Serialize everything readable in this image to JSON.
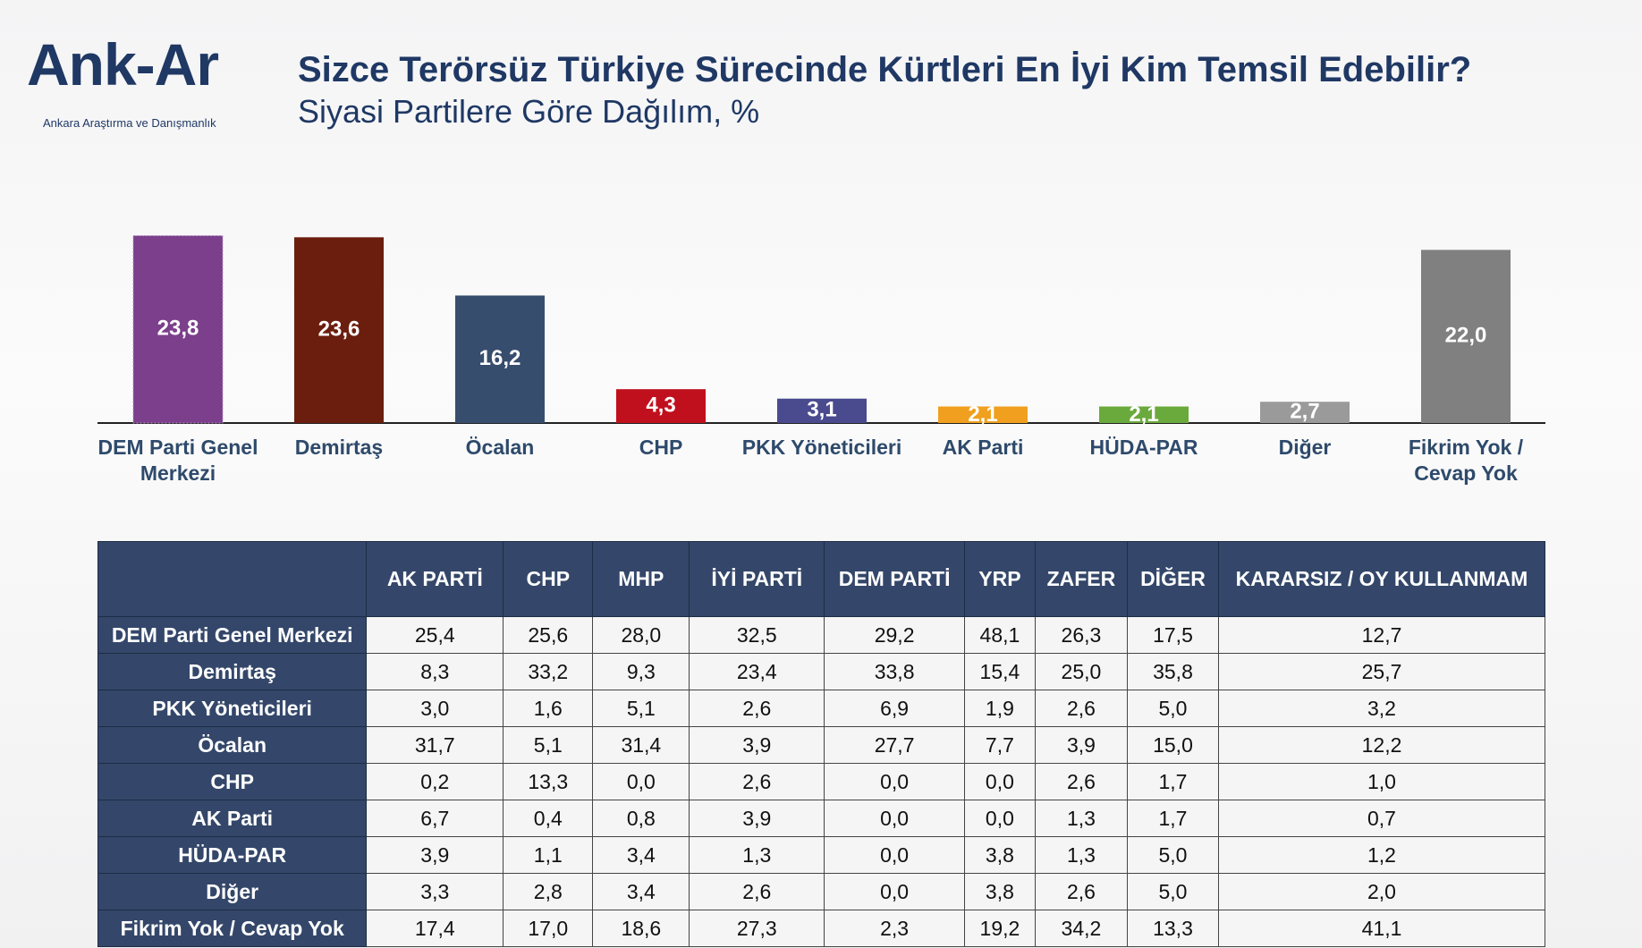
{
  "logo": {
    "name": "Ank-Ar",
    "tagline": "Ankara Araştırma ve Danışmanlık"
  },
  "chart_data": {
    "type": "bar",
    "title": "Sizce Terörsüz Türkiye Sürecinde Kürtleri En İyi Kim Temsil Edebilir?",
    "subtitle": "Siyasi Partilere Göre Dağılım, %",
    "categories": [
      "DEM Parti Genel Merkezi",
      "Demirtaş",
      "Öcalan",
      "CHP",
      "PKK Yöneticileri",
      "AK Parti",
      "HÜDA-PAR",
      "Diğer",
      "Fikrim Yok / Cevap Yok"
    ],
    "values": [
      23.8,
      23.6,
      16.2,
      4.3,
      3.1,
      2.1,
      2.1,
      2.7,
      22.0
    ],
    "value_labels": [
      "23,8",
      "23,6",
      "16,2",
      "4,3",
      "3,1",
      "2,1",
      "2,1",
      "2,7",
      "22,0"
    ],
    "colors": [
      "#7b3f8c",
      "#6b1e0e",
      "#374d6e",
      "#c0101e",
      "#4a4a8f",
      "#f0a01e",
      "#6aaa3c",
      "#9a9a9a",
      "#808080"
    ],
    "ylim": [
      0,
      25
    ]
  },
  "table": {
    "header": [
      "AK PARTİ",
      "CHP",
      "MHP",
      "İYİ PARTİ",
      "DEM PARTİ",
      "YRP",
      "ZAFER",
      "DİĞER",
      "KARARSIZ / OY KULLANMAM"
    ],
    "rows": [
      {
        "label": "DEM Parti Genel Merkezi",
        "cells": [
          "25,4",
          "25,6",
          "28,0",
          "32,5",
          "29,2",
          "48,1",
          "26,3",
          "17,5",
          "12,7"
        ]
      },
      {
        "label": "Demirtaş",
        "cells": [
          "8,3",
          "33,2",
          "9,3",
          "23,4",
          "33,8",
          "15,4",
          "25,0",
          "35,8",
          "25,7"
        ]
      },
      {
        "label": "PKK Yöneticileri",
        "cells": [
          "3,0",
          "1,6",
          "5,1",
          "2,6",
          "6,9",
          "1,9",
          "2,6",
          "5,0",
          "3,2"
        ]
      },
      {
        "label": "Öcalan",
        "cells": [
          "31,7",
          "5,1",
          "31,4",
          "3,9",
          "27,7",
          "7,7",
          "3,9",
          "15,0",
          "12,2"
        ]
      },
      {
        "label": "CHP",
        "cells": [
          "0,2",
          "13,3",
          "0,0",
          "2,6",
          "0,0",
          "0,0",
          "2,6",
          "1,7",
          "1,0"
        ]
      },
      {
        "label": "AK Parti",
        "cells": [
          "6,7",
          "0,4",
          "0,8",
          "3,9",
          "0,0",
          "0,0",
          "1,3",
          "1,7",
          "0,7"
        ]
      },
      {
        "label": "HÜDA-PAR",
        "cells": [
          "3,9",
          "1,1",
          "3,4",
          "1,3",
          "0,0",
          "3,8",
          "1,3",
          "5,0",
          "1,2"
        ]
      },
      {
        "label": "Diğer",
        "cells": [
          "3,3",
          "2,8",
          "3,4",
          "2,6",
          "0,0",
          "3,8",
          "2,6",
          "5,0",
          "2,0"
        ]
      },
      {
        "label": "Fikrim Yok / Cevap Yok",
        "cells": [
          "17,4",
          "17,0",
          "18,6",
          "27,3",
          "2,3",
          "19,2",
          "34,2",
          "13,3",
          "41,1"
        ]
      }
    ]
  }
}
